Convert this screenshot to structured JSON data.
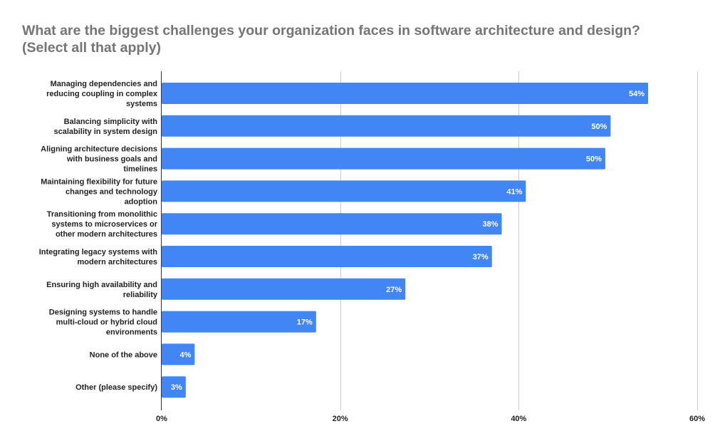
{
  "chart_data": {
    "type": "bar",
    "orientation": "horizontal",
    "title": "What are the biggest challenges your organization faces in software architecture and design?",
    "subtitle": "(Select all that apply)",
    "categories": [
      "Managing dependencies and reducing coupling in complex systems",
      "Balancing simplicity with scalability in system design",
      "Aligning architecture decisions with business goals and timelines",
      "Maintaining flexibility for future changes and technology adoption",
      "Transitioning from monolithic systems to microservices or other modern architectures",
      "Integrating legacy systems with modern architectures",
      "Ensuring high availability and reliability",
      "Designing systems to handle multi-cloud or hybrid cloud environments",
      "None of the above",
      "Other (please specify)"
    ],
    "category_label_lines": [
      [
        "Managing dependencies and",
        "reducing coupling in complex",
        "systems"
      ],
      [
        "Balancing simplicity with",
        "scalability in system design"
      ],
      [
        "Aligning architecture decisions",
        "with business goals and",
        "timelines"
      ],
      [
        "Maintaining flexibility for future",
        "changes and technology",
        "adoption"
      ],
      [
        "Transitioning from monolithic",
        "systems to microservices or",
        "other modern architectures"
      ],
      [
        "Integrating legacy systems with",
        "modern architectures"
      ],
      [
        "Ensuring high availability and",
        "reliability"
      ],
      [
        "Designing systems to handle",
        "multi-cloud or hybrid cloud",
        "environments"
      ],
      [
        "None of the above"
      ],
      [
        "Other (please specify)"
      ]
    ],
    "values": [
      54.5,
      50.3,
      49.7,
      40.8,
      38.1,
      37.0,
      27.3,
      17.3,
      3.7,
      2.7
    ],
    "data_labels": [
      "54%",
      "50%",
      "50%",
      "41%",
      "38%",
      "37%",
      "27%",
      "17%",
      "4%",
      "3%"
    ],
    "xlim": [
      0,
      60
    ],
    "x_ticks": [
      0,
      20,
      40,
      60
    ],
    "x_tick_labels": [
      "0%",
      "20%",
      "40%",
      "60%"
    ],
    "grid": true,
    "legend": "none",
    "bar_color": "#4285f4",
    "grid_color": "#cccccc",
    "axis_color": "#333333"
  }
}
